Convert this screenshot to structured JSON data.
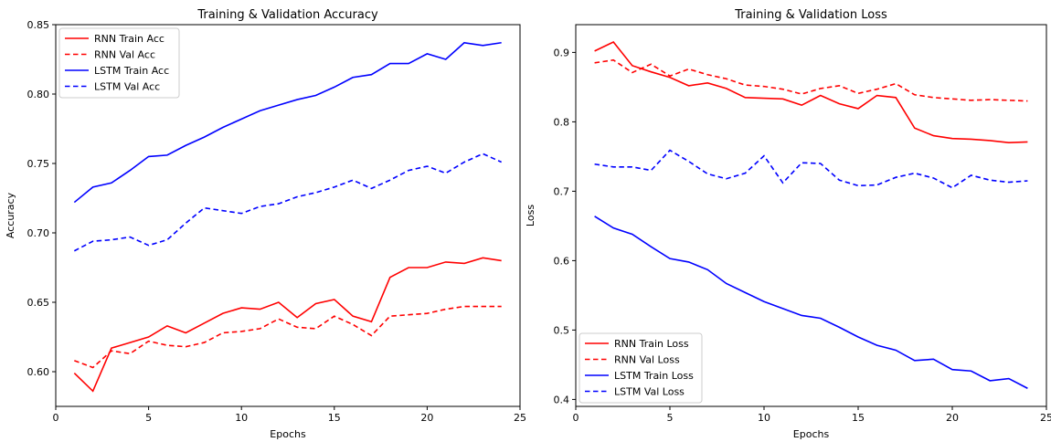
{
  "chart_data": [
    {
      "type": "line",
      "title": "Training & Validation Accuracy",
      "xlabel": "Epochs",
      "ylabel": "Accuracy",
      "xlim": [
        0,
        25
      ],
      "ylim": [
        0.575,
        0.85
      ],
      "xticks": [
        0,
        5,
        10,
        15,
        20,
        25
      ],
      "yticks": [
        0.6,
        0.65,
        0.7,
        0.75,
        0.8,
        0.85
      ],
      "ytick_labels": [
        "0.60",
        "0.65",
        "0.70",
        "0.75",
        "0.80",
        "0.85"
      ],
      "grid": false,
      "legend_position": "top-left",
      "x": [
        1,
        2,
        3,
        4,
        5,
        6,
        7,
        8,
        9,
        10,
        11,
        12,
        13,
        14,
        15,
        16,
        17,
        18,
        19,
        20,
        21,
        22,
        23,
        24
      ],
      "series": [
        {
          "name": "RNN Train Acc",
          "color": "#ff0000",
          "dash": false,
          "values": [
            0.599,
            0.586,
            0.617,
            0.621,
            0.625,
            0.633,
            0.628,
            0.635,
            0.642,
            0.646,
            0.645,
            0.65,
            0.639,
            0.649,
            0.652,
            0.64,
            0.636,
            0.668,
            0.675,
            0.675,
            0.679,
            0.678,
            0.682,
            0.68
          ]
        },
        {
          "name": "RNN Val Acc",
          "color": "#ff0000",
          "dash": true,
          "values": [
            0.608,
            0.603,
            0.615,
            0.613,
            0.622,
            0.619,
            0.618,
            0.621,
            0.628,
            0.629,
            0.631,
            0.638,
            0.632,
            0.631,
            0.64,
            0.634,
            0.626,
            0.64,
            0.641,
            0.642,
            0.645,
            0.647,
            0.647,
            0.647
          ]
        },
        {
          "name": "LSTM Train Acc",
          "color": "#0000ff",
          "dash": false,
          "values": [
            0.722,
            0.733,
            0.736,
            0.745,
            0.755,
            0.756,
            0.763,
            0.769,
            0.776,
            0.782,
            0.788,
            0.792,
            0.796,
            0.799,
            0.805,
            0.812,
            0.814,
            0.822,
            0.822,
            0.829,
            0.825,
            0.837,
            0.835,
            0.837
          ]
        },
        {
          "name": "LSTM Val Acc",
          "color": "#0000ff",
          "dash": true,
          "values": [
            0.687,
            0.694,
            0.695,
            0.697,
            0.691,
            0.695,
            0.707,
            0.718,
            0.716,
            0.714,
            0.719,
            0.721,
            0.726,
            0.729,
            0.733,
            0.738,
            0.732,
            0.738,
            0.745,
            0.748,
            0.743,
            0.751,
            0.757,
            0.751
          ]
        }
      ]
    },
    {
      "type": "line",
      "title": "Training & Validation Loss",
      "xlabel": "Epochs",
      "ylabel": "Loss",
      "xlim": [
        0,
        25
      ],
      "ylim": [
        0.39,
        0.94
      ],
      "xticks": [
        0,
        5,
        10,
        15,
        20,
        25
      ],
      "yticks": [
        0.4,
        0.5,
        0.6,
        0.7,
        0.8,
        0.9
      ],
      "ytick_labels": [
        "0.4",
        "0.5",
        "0.6",
        "0.7",
        "0.8",
        "0.9"
      ],
      "grid": false,
      "legend_position": "bottom-left",
      "x": [
        1,
        2,
        3,
        4,
        5,
        6,
        7,
        8,
        9,
        10,
        11,
        12,
        13,
        14,
        15,
        16,
        17,
        18,
        19,
        20,
        21,
        22,
        23,
        24
      ],
      "series": [
        {
          "name": "RNN Train Loss",
          "color": "#ff0000",
          "dash": false,
          "values": [
            0.902,
            0.915,
            0.881,
            0.872,
            0.864,
            0.852,
            0.856,
            0.848,
            0.835,
            0.834,
            0.833,
            0.824,
            0.838,
            0.826,
            0.819,
            0.838,
            0.835,
            0.791,
            0.78,
            0.776,
            0.775,
            0.773,
            0.77,
            0.771
          ]
        },
        {
          "name": "RNN Val Loss",
          "color": "#ff0000",
          "dash": true,
          "values": [
            0.885,
            0.889,
            0.871,
            0.883,
            0.866,
            0.876,
            0.868,
            0.862,
            0.853,
            0.851,
            0.847,
            0.84,
            0.848,
            0.852,
            0.841,
            0.847,
            0.855,
            0.839,
            0.835,
            0.833,
            0.831,
            0.832,
            0.831,
            0.83
          ]
        },
        {
          "name": "LSTM Train Loss",
          "color": "#0000ff",
          "dash": false,
          "values": [
            0.664,
            0.647,
            0.638,
            0.62,
            0.603,
            0.598,
            0.587,
            0.567,
            0.554,
            0.541,
            0.531,
            0.521,
            0.517,
            0.504,
            0.49,
            0.478,
            0.471,
            0.456,
            0.458,
            0.443,
            0.441,
            0.427,
            0.43,
            0.416
          ]
        },
        {
          "name": "LSTM Val Loss",
          "color": "#0000ff",
          "dash": true,
          "values": [
            0.739,
            0.735,
            0.735,
            0.73,
            0.759,
            0.743,
            0.725,
            0.718,
            0.726,
            0.751,
            0.712,
            0.741,
            0.74,
            0.716,
            0.708,
            0.709,
            0.72,
            0.726,
            0.719,
            0.705,
            0.723,
            0.716,
            0.713,
            0.715
          ]
        }
      ]
    }
  ]
}
